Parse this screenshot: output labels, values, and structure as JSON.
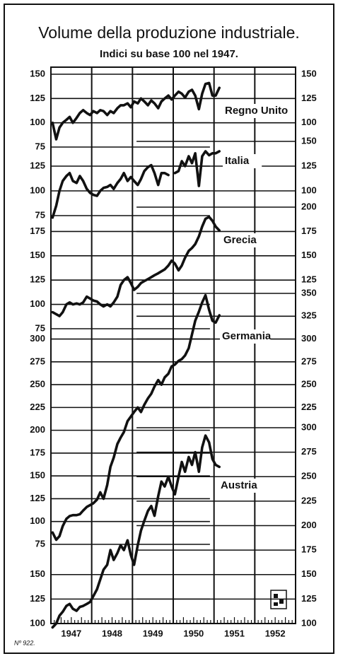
{
  "chart_data": {
    "type": "line",
    "title": "Volume della produzione industriale.",
    "subtitle": "Indici su base 100 nel 1947.",
    "note": "Nº 922.",
    "categories": [
      "1947",
      "1948",
      "1949",
      "1950",
      "1951",
      "1952"
    ],
    "xlim": [
      1947,
      1953
    ],
    "xticks": [
      1948,
      1949,
      1950,
      1951,
      1952
    ],
    "x": [
      1947.04,
      1947.13,
      1947.21,
      1947.29,
      1947.38,
      1947.46,
      1947.54,
      1947.63,
      1947.71,
      1947.79,
      1947.88,
      1947.96,
      1948.04,
      1948.13,
      1948.21,
      1948.29,
      1948.38,
      1948.46,
      1948.54,
      1948.63,
      1948.71,
      1948.79,
      1948.88,
      1948.96,
      1949.04,
      1949.13,
      1949.21,
      1949.29,
      1949.38,
      1949.46,
      1949.54,
      1949.63,
      1949.71,
      1949.79,
      1949.88,
      1949.96,
      1950.04,
      1950.13,
      1950.21,
      1950.29,
      1950.38,
      1950.46,
      1950.54,
      1950.63,
      1950.71,
      1950.79,
      1950.88,
      1950.96,
      1951.04,
      1951.13
    ],
    "series": [
      {
        "name": "Regno Unito",
        "color": "#111111",
        "ylim": [
          75,
          150
        ],
        "yticks_left": [
          150,
          125,
          100,
          75
        ],
        "yticks_right": [
          150,
          125,
          100
        ],
        "values": [
          100,
          83,
          95,
          100,
          103,
          106,
          100,
          105,
          110,
          113,
          110,
          108,
          112,
          110,
          113,
          112,
          108,
          112,
          110,
          115,
          118,
          118,
          120,
          116,
          122,
          120,
          125,
          122,
          118,
          123,
          120,
          115,
          122,
          125,
          128,
          124,
          128,
          132,
          130,
          126,
          132,
          134,
          128,
          114,
          130,
          140,
          141,
          128,
          128,
          136
        ]
      },
      {
        "name": "Italia",
        "color": "#111111",
        "ylim": [
          75,
          150
        ],
        "yticks_left": [
          125,
          100,
          75
        ],
        "yticks_right": [
          150,
          125,
          100
        ],
        "values": [
          73,
          85,
          100,
          110,
          115,
          118,
          110,
          108,
          115,
          110,
          102,
          98,
          96,
          95,
          100,
          103,
          104,
          106,
          102,
          108,
          112,
          118,
          110,
          114,
          110,
          106,
          112,
          120,
          124,
          126,
          118,
          106,
          118,
          118,
          116,
          null,
          118,
          120,
          130,
          125,
          135,
          128,
          138,
          105,
          135,
          140,
          136,
          138,
          138,
          140
        ]
      },
      {
        "name": "Grecia",
        "color": "#111111",
        "ylim": [
          75,
          200
        ],
        "yticks_left": [
          175,
          150,
          125,
          100,
          75
        ],
        "yticks_right": [
          200,
          175,
          150,
          125
        ],
        "values": [
          92,
          90,
          88,
          92,
          100,
          102,
          100,
          101,
          100,
          102,
          108,
          106,
          104,
          103,
          100,
          98,
          100,
          98,
          102,
          108,
          120,
          125,
          128,
          122,
          115,
          118,
          122,
          124,
          126,
          128,
          130,
          132,
          134,
          136,
          140,
          145,
          142,
          135,
          140,
          148,
          155,
          158,
          162,
          170,
          180,
          188,
          190,
          186,
          180,
          176
        ]
      },
      {
        "name": "Germania",
        "color": "#111111",
        "ylim": [
          75,
          350
        ],
        "yticks_left": [
          300,
          275,
          250,
          225,
          200,
          175,
          150,
          125,
          100,
          75
        ],
        "yticks_right": [
          350,
          325,
          300,
          275,
          250,
          225
        ],
        "values": [
          88,
          80,
          84,
          95,
          103,
          106,
          107,
          107,
          108,
          112,
          116,
          118,
          120,
          124,
          132,
          125,
          140,
          160,
          170,
          185,
          192,
          198,
          210,
          215,
          220,
          225,
          220,
          228,
          235,
          240,
          248,
          255,
          250,
          258,
          262,
          270,
          272,
          276,
          278,
          282,
          290,
          305,
          320,
          330,
          340,
          348,
          332,
          320,
          318,
          326
        ]
      },
      {
        "name": "Austria",
        "color": "#111111",
        "ylim": [
          100,
          300
        ],
        "yticks_left": [
          150,
          125,
          100
        ],
        "yticks_right": [
          300,
          275,
          250,
          225,
          200,
          175,
          150,
          125,
          100
        ],
        "values": [
          96,
          100,
          108,
          112,
          118,
          120,
          115,
          113,
          117,
          118,
          120,
          122,
          128,
          135,
          145,
          155,
          160,
          175,
          165,
          172,
          180,
          175,
          185,
          170,
          160,
          180,
          195,
          205,
          215,
          220,
          210,
          230,
          245,
          240,
          250,
          240,
          232,
          250,
          265,
          255,
          270,
          262,
          275,
          255,
          280,
          292,
          285,
          268,
          262,
          260
        ]
      }
    ]
  }
}
